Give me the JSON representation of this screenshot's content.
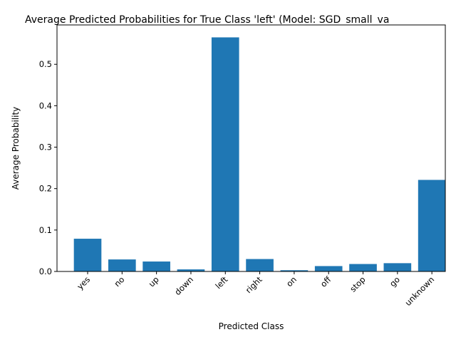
{
  "chart_data": {
    "type": "bar",
    "title": "Average Predicted Probabilities for True Class 'left' (Model: SGD_small_va",
    "xlabel": "Predicted Class",
    "ylabel": "Average Probability",
    "categories": [
      "yes",
      "no",
      "up",
      "down",
      "left",
      "right",
      "on",
      "off",
      "stop",
      "go",
      "unknown"
    ],
    "values": [
      0.079,
      0.029,
      0.024,
      0.005,
      0.565,
      0.03,
      0.003,
      0.013,
      0.018,
      0.02,
      0.221
    ],
    "ylim": [
      0,
      0.595
    ],
    "yticks": [
      "0.0",
      "0.1",
      "0.2",
      "0.3",
      "0.4",
      "0.5"
    ],
    "bar_color": "#1f77b4",
    "grid": false,
    "legend": "none"
  }
}
